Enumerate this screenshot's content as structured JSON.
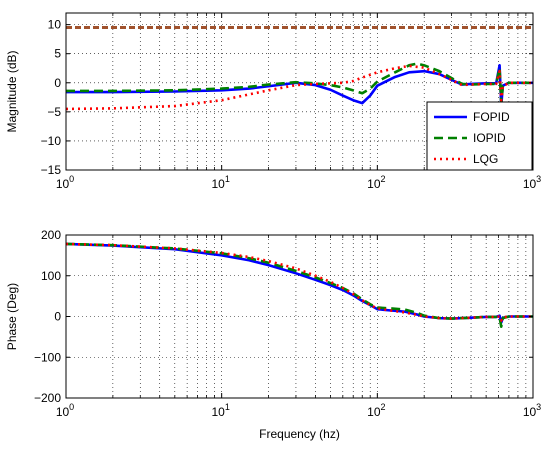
{
  "chart_data": [
    {
      "type": "line",
      "x_scale": "log",
      "xlim": [
        1,
        1000
      ],
      "ylim": [
        -15,
        12
      ],
      "ylabel": "Magnitude (dB)",
      "xlabel": "",
      "yticks": [
        "−15",
        "−10",
        "−5",
        "0",
        "5",
        "10"
      ],
      "ytick_values": [
        -15,
        -10,
        -5,
        0,
        5,
        10
      ],
      "xticks": [
        {
          "base": "10",
          "exp": "0",
          "value": 1
        },
        {
          "base": "10",
          "exp": "1",
          "value": 10
        },
        {
          "base": "10",
          "exp": "2",
          "value": 100
        },
        {
          "base": "10",
          "exp": "3",
          "value": 1000
        }
      ],
      "grid": true,
      "legend_position": "bottom-right",
      "reference_line": {
        "y": 9.5,
        "color": "#a0522d"
      },
      "series": [
        {
          "name": "FOPID",
          "color": "#0000ff",
          "style": "solid",
          "points": [
            [
              1,
              -1.6
            ],
            [
              2,
              -1.6
            ],
            [
              5,
              -1.5
            ],
            [
              10,
              -1.3
            ],
            [
              15,
              -1.0
            ],
            [
              20,
              -0.6
            ],
            [
              30,
              0.0
            ],
            [
              40,
              -0.4
            ],
            [
              50,
              -1.2
            ],
            [
              60,
              -2.2
            ],
            [
              70,
              -3.0
            ],
            [
              80,
              -3.5
            ],
            [
              90,
              -2.2
            ],
            [
              100,
              -0.5
            ],
            [
              130,
              1.0
            ],
            [
              160,
              1.8
            ],
            [
              200,
              2.0
            ],
            [
              250,
              1.5
            ],
            [
              300,
              0.5
            ],
            [
              350,
              -0.3
            ],
            [
              400,
              -0.2
            ],
            [
              500,
              -0.1
            ],
            [
              580,
              -0.1
            ],
            [
              610,
              3.0
            ],
            [
              625,
              -4.0
            ],
            [
              640,
              -0.5
            ],
            [
              700,
              0.0
            ],
            [
              1000,
              0.0
            ]
          ]
        },
        {
          "name": "IOPID",
          "color": "#008000",
          "style": "dashed",
          "points": [
            [
              1,
              -1.4
            ],
            [
              2,
              -1.4
            ],
            [
              5,
              -1.3
            ],
            [
              10,
              -1.0
            ],
            [
              15,
              -0.7
            ],
            [
              20,
              -0.3
            ],
            [
              30,
              0.1
            ],
            [
              40,
              -0.1
            ],
            [
              50,
              -0.4
            ],
            [
              60,
              -0.8
            ],
            [
              70,
              -1.3
            ],
            [
              80,
              -1.8
            ],
            [
              90,
              -1.0
            ],
            [
              100,
              0.2
            ],
            [
              130,
              1.8
            ],
            [
              160,
              3.0
            ],
            [
              180,
              3.3
            ],
            [
              200,
              3.0
            ],
            [
              250,
              2.0
            ],
            [
              300,
              0.8
            ],
            [
              350,
              -0.2
            ],
            [
              400,
              -0.3
            ],
            [
              500,
              -0.2
            ],
            [
              580,
              -0.2
            ],
            [
              610,
              2.5
            ],
            [
              625,
              -3.5
            ],
            [
              640,
              -0.6
            ],
            [
              700,
              0.0
            ],
            [
              1000,
              0.0
            ]
          ]
        },
        {
          "name": "LQG",
          "color": "#ff0000",
          "style": "dotted",
          "points": [
            [
              1,
              -4.5
            ],
            [
              2,
              -4.4
            ],
            [
              5,
              -4.0
            ],
            [
              10,
              -3.0
            ],
            [
              15,
              -2.0
            ],
            [
              20,
              -1.3
            ],
            [
              30,
              -0.4
            ],
            [
              40,
              -0.2
            ],
            [
              50,
              -0.1
            ],
            [
              60,
              0.0
            ],
            [
              70,
              0.3
            ],
            [
              80,
              0.9
            ],
            [
              100,
              1.8
            ],
            [
              130,
              2.5
            ],
            [
              160,
              2.9
            ],
            [
              200,
              2.6
            ],
            [
              250,
              1.5
            ],
            [
              300,
              0.5
            ],
            [
              350,
              -0.4
            ],
            [
              400,
              -0.3
            ],
            [
              500,
              -0.2
            ],
            [
              580,
              -0.2
            ],
            [
              610,
              2.0
            ],
            [
              625,
              -3.0
            ],
            [
              640,
              -0.6
            ],
            [
              700,
              0.0
            ],
            [
              1000,
              0.0
            ]
          ]
        }
      ]
    },
    {
      "type": "line",
      "x_scale": "log",
      "xlim": [
        1,
        1000
      ],
      "ylim": [
        -200,
        200
      ],
      "ylabel": "Phase (Deg)",
      "xlabel": "Frequency (hz)",
      "yticks": [
        "−200",
        "−100",
        "0",
        "100",
        "200"
      ],
      "ytick_values": [
        -200,
        -100,
        0,
        100,
        200
      ],
      "xticks": [
        {
          "base": "10",
          "exp": "0",
          "value": 1
        },
        {
          "base": "10",
          "exp": "1",
          "value": 10
        },
        {
          "base": "10",
          "exp": "2",
          "value": 100
        },
        {
          "base": "10",
          "exp": "3",
          "value": 1000
        }
      ],
      "grid": true,
      "series": [
        {
          "name": "FOPID",
          "color": "#0000ff",
          "style": "solid",
          "points": [
            [
              1,
              178
            ],
            [
              2,
              174
            ],
            [
              5,
              165
            ],
            [
              10,
              150
            ],
            [
              15,
              138
            ],
            [
              20,
              126
            ],
            [
              30,
              106
            ],
            [
              40,
              90
            ],
            [
              50,
              77
            ],
            [
              60,
              65
            ],
            [
              70,
              52
            ],
            [
              80,
              38
            ],
            [
              90,
              28
            ],
            [
              100,
              18
            ],
            [
              120,
              15
            ],
            [
              150,
              12
            ],
            [
              180,
              5
            ],
            [
              200,
              0
            ],
            [
              250,
              -4
            ],
            [
              300,
              -5
            ],
            [
              400,
              -3
            ],
            [
              500,
              -1
            ],
            [
              580,
              -1
            ],
            [
              610,
              2
            ],
            [
              625,
              -15
            ],
            [
              640,
              -3
            ],
            [
              700,
              0
            ],
            [
              1000,
              0
            ]
          ]
        },
        {
          "name": "IOPID",
          "color": "#008000",
          "style": "dashed",
          "points": [
            [
              1,
              178
            ],
            [
              2,
              175
            ],
            [
              5,
              167
            ],
            [
              10,
              155
            ],
            [
              15,
              143
            ],
            [
              20,
              132
            ],
            [
              30,
              112
            ],
            [
              40,
              96
            ],
            [
              50,
              82
            ],
            [
              60,
              70
            ],
            [
              70,
              57
            ],
            [
              80,
              42
            ],
            [
              90,
              30
            ],
            [
              100,
              22
            ],
            [
              120,
              20
            ],
            [
              150,
              17
            ],
            [
              180,
              9
            ],
            [
              200,
              2
            ],
            [
              250,
              -4
            ],
            [
              300,
              -5
            ],
            [
              400,
              -3
            ],
            [
              500,
              -1
            ],
            [
              580,
              -1
            ],
            [
              610,
              -2
            ],
            [
              625,
              -25
            ],
            [
              640,
              -4
            ],
            [
              700,
              0
            ],
            [
              1000,
              0
            ]
          ]
        },
        {
          "name": "LQG",
          "color": "#ff0000",
          "style": "dotted",
          "points": [
            [
              1,
              178
            ],
            [
              2,
              175
            ],
            [
              5,
              167
            ],
            [
              10,
              156
            ],
            [
              15,
              146
            ],
            [
              20,
              136
            ],
            [
              30,
              118
            ],
            [
              40,
              100
            ],
            [
              50,
              85
            ],
            [
              60,
              70
            ],
            [
              70,
              55
            ],
            [
              80,
              40
            ],
            [
              90,
              28
            ],
            [
              100,
              20
            ],
            [
              120,
              15
            ],
            [
              150,
              10
            ],
            [
              180,
              4
            ],
            [
              200,
              0
            ],
            [
              250,
              -4
            ],
            [
              300,
              -5
            ],
            [
              400,
              -3
            ],
            [
              500,
              -1
            ],
            [
              580,
              -1
            ],
            [
              610,
              0
            ],
            [
              625,
              -10
            ],
            [
              640,
              -2
            ],
            [
              700,
              0
            ],
            [
              1000,
              0
            ]
          ]
        }
      ]
    }
  ]
}
